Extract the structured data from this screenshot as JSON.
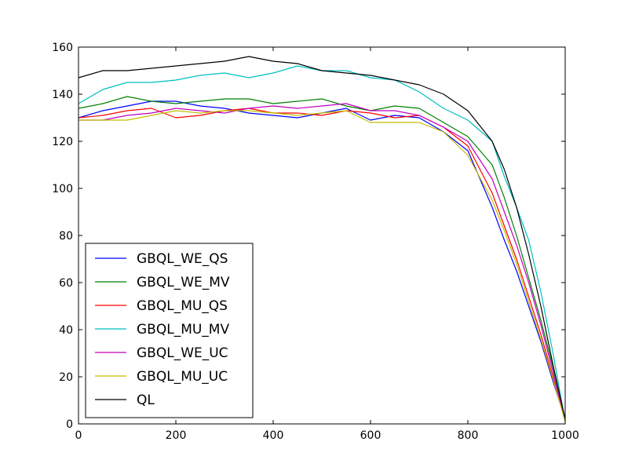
{
  "chart_data": {
    "type": "line",
    "xlim": [
      0,
      1000
    ],
    "ylim": [
      0,
      160
    ],
    "xticks": [
      0,
      200,
      400,
      600,
      800,
      1000
    ],
    "yticks": [
      0,
      20,
      40,
      60,
      80,
      100,
      120,
      140,
      160
    ],
    "grid": false,
    "legend_position": "lower-left",
    "x": [
      0,
      50,
      100,
      150,
      200,
      250,
      300,
      350,
      400,
      450,
      500,
      550,
      600,
      650,
      700,
      750,
      800,
      850,
      875,
      900,
      925,
      950,
      975,
      1000
    ],
    "series": [
      {
        "name": "GBQL_WE_QS",
        "color": "#0000ff",
        "values": [
          130,
          133,
          135,
          137,
          137,
          135,
          134,
          132,
          131,
          130,
          132,
          134,
          129,
          131,
          130,
          124,
          116,
          92,
          78,
          65,
          50,
          35,
          18,
          2
        ]
      },
      {
        "name": "GBQL_WE_MV",
        "color": "#008000",
        "values": [
          134,
          136,
          139,
          137,
          136,
          137,
          138,
          138,
          136,
          137,
          138,
          135,
          133,
          135,
          134,
          128,
          122,
          110,
          96,
          80,
          62,
          44,
          24,
          2
        ]
      },
      {
        "name": "GBQL_MU_QS",
        "color": "#ff0000",
        "values": [
          130,
          131,
          133,
          134,
          130,
          131,
          133,
          134,
          132,
          132,
          131,
          133,
          132,
          130,
          131,
          126,
          118,
          98,
          84,
          70,
          54,
          38,
          20,
          1
        ]
      },
      {
        "name": "GBQL_MU_MV",
        "color": "#00bfbf",
        "values": [
          136,
          142,
          145,
          145,
          146,
          148,
          149,
          147,
          149,
          152,
          150,
          150,
          147,
          146,
          141,
          134,
          129,
          120,
          105,
          92,
          78,
          56,
          30,
          1
        ]
      },
      {
        "name": "GBQL_WE_UC",
        "color": "#bf00bf",
        "values": [
          129,
          129,
          131,
          132,
          134,
          133,
          132,
          134,
          135,
          134,
          135,
          136,
          133,
          133,
          131,
          126,
          120,
          104,
          90,
          76,
          60,
          42,
          22,
          1
        ]
      },
      {
        "name": "GBQL_MU_UC",
        "color": "#bfbf00",
        "values": [
          129,
          129,
          129,
          131,
          133,
          132,
          133,
          133,
          132,
          131,
          132,
          133,
          128,
          128,
          128,
          124,
          114,
          95,
          82,
          68,
          52,
          36,
          19,
          1
        ]
      },
      {
        "name": "QL",
        "color": "#000000",
        "values": [
          147,
          150,
          150,
          151,
          152,
          153,
          154,
          156,
          154,
          153,
          150,
          149,
          148,
          146,
          144,
          140,
          133,
          120,
          108,
          92,
          72,
          50,
          25,
          2
        ]
      }
    ]
  }
}
